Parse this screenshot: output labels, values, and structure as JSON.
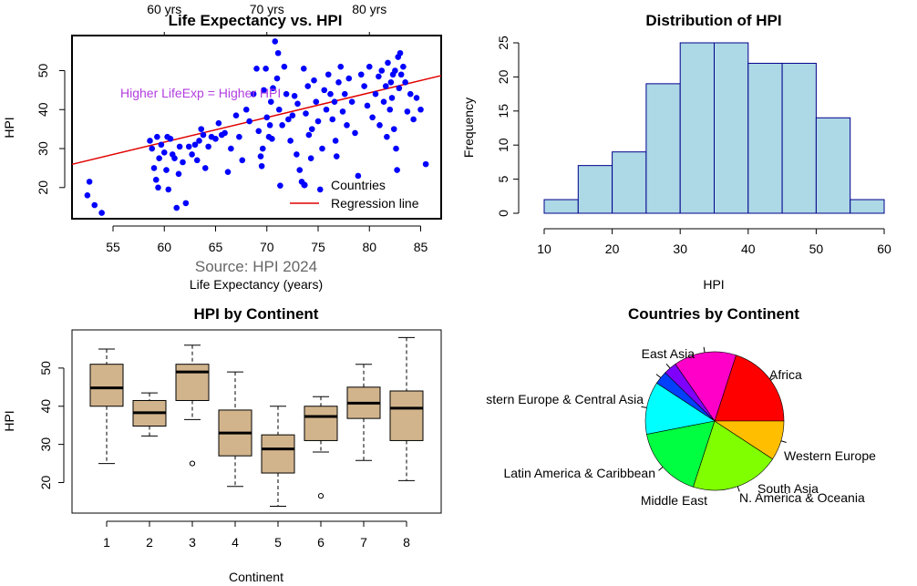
{
  "chart_data": [
    {
      "type": "scatter",
      "title": "Life Expectancy vs. HPI",
      "xlabel": "Life Expectancy (years)",
      "ylabel": "HPI",
      "xlim": [
        51,
        87
      ],
      "ylim": [
        12,
        59
      ],
      "xticks": [
        55,
        60,
        65,
        70,
        75,
        80,
        85
      ],
      "yticks": [
        20,
        30,
        40,
        50
      ],
      "top_ticks": [
        "60 yrs",
        "70 yrs",
        "80 yrs"
      ],
      "top_tick_values": [
        60,
        70,
        80
      ],
      "annotation": "Higher LifeExp = Higher HPI",
      "annotation_color": "#b23ee0",
      "source_text": "Source: HPI 2024",
      "point_color": "#0000ff",
      "regression_color": "#e00000",
      "regression": {
        "intercept": -6.3,
        "slope": 0.6325
      },
      "legend": [
        "Countries",
        "Regression line"
      ],
      "legend_position": "bottom-right",
      "points": [
        [
          52.5,
          18
        ],
        [
          52.7,
          21.5
        ],
        [
          53.2,
          15.5
        ],
        [
          53.9,
          13.5
        ],
        [
          58.6,
          32
        ],
        [
          58.8,
          30
        ],
        [
          59.0,
          25
        ],
        [
          59.2,
          22
        ],
        [
          59.4,
          20
        ],
        [
          59.3,
          33
        ],
        [
          59.5,
          27.5
        ],
        [
          59.7,
          31
        ],
        [
          60.0,
          29
        ],
        [
          60.2,
          24.5
        ],
        [
          60.3,
          33
        ],
        [
          60.4,
          19.5
        ],
        [
          60.6,
          32.5
        ],
        [
          60.8,
          28.5
        ],
        [
          61.0,
          27.5
        ],
        [
          61.4,
          23.5
        ],
        [
          61.2,
          14.8
        ],
        [
          61.5,
          30.5
        ],
        [
          61.8,
          26.5
        ],
        [
          62.1,
          16
        ],
        [
          62.4,
          30.5
        ],
        [
          62.7,
          28.5
        ],
        [
          63.0,
          31
        ],
        [
          63.2,
          27
        ],
        [
          63.4,
          32
        ],
        [
          63.6,
          35
        ],
        [
          63.8,
          33.5
        ],
        [
          64.0,
          25
        ],
        [
          64.3,
          30.5
        ],
        [
          64.6,
          33
        ],
        [
          65.0,
          32.5
        ],
        [
          65.3,
          36.5
        ],
        [
          65.6,
          33.5
        ],
        [
          65.9,
          34
        ],
        [
          66.2,
          24
        ],
        [
          66.5,
          30
        ],
        [
          67.0,
          38.5
        ],
        [
          67.3,
          33
        ],
        [
          67.6,
          27
        ],
        [
          68.0,
          40
        ],
        [
          68.3,
          37
        ],
        [
          68.7,
          44
        ],
        [
          69.0,
          50.5
        ],
        [
          69.2,
          34.5
        ],
        [
          69.4,
          28
        ],
        [
          69.5,
          25.5
        ],
        [
          69.6,
          30
        ],
        [
          69.7,
          45
        ],
        [
          69.9,
          50.5
        ],
        [
          70.0,
          38
        ],
        [
          70.2,
          33
        ],
        [
          70.3,
          36
        ],
        [
          70.4,
          42
        ],
        [
          70.5,
          32.5
        ],
        [
          70.6,
          45.5
        ],
        [
          70.8,
          57.5
        ],
        [
          71.0,
          48
        ],
        [
          71.1,
          54.5
        ],
        [
          71.2,
          40
        ],
        [
          71.3,
          20.5
        ],
        [
          71.5,
          36
        ],
        [
          71.7,
          51
        ],
        [
          71.9,
          44
        ],
        [
          72.1,
          37.5
        ],
        [
          72.3,
          32
        ],
        [
          72.5,
          38.5
        ],
        [
          72.7,
          43.5
        ],
        [
          72.9,
          28.5
        ],
        [
          73.0,
          41.5
        ],
        [
          73.2,
          24.5
        ],
        [
          73.4,
          21.5
        ],
        [
          73.6,
          50.5
        ],
        [
          73.8,
          39
        ],
        [
          74.0,
          46
        ],
        [
          74.1,
          33.5
        ],
        [
          74.3,
          27.5
        ],
        [
          74.4,
          35
        ],
        [
          74.6,
          47.5
        ],
        [
          74.8,
          42
        ],
        [
          75.0,
          37
        ],
        [
          75.2,
          19.5
        ],
        [
          75.4,
          30
        ],
        [
          75.6,
          45
        ],
        [
          75.8,
          40
        ],
        [
          76.0,
          49
        ],
        [
          76.2,
          44
        ],
        [
          76.4,
          37.5
        ],
        [
          76.6,
          42
        ],
        [
          76.7,
          32
        ],
        [
          76.8,
          28
        ],
        [
          77.0,
          47
        ],
        [
          77.2,
          51
        ],
        [
          77.4,
          39.5
        ],
        [
          77.6,
          44
        ],
        [
          77.8,
          36
        ],
        [
          78.0,
          48
        ],
        [
          78.3,
          42
        ],
        [
          78.6,
          34
        ],
        [
          78.9,
          23
        ],
        [
          79.2,
          49
        ],
        [
          79.5,
          46
        ],
        [
          79.8,
          41
        ],
        [
          80.0,
          51
        ],
        [
          80.3,
          38
        ],
        [
          80.6,
          44
        ],
        [
          80.9,
          48.5
        ],
        [
          81.0,
          36
        ],
        [
          81.2,
          50
        ],
        [
          81.4,
          42
        ],
        [
          81.6,
          46
        ],
        [
          81.7,
          33
        ],
        [
          81.8,
          52
        ],
        [
          82.0,
          40
        ],
        [
          82.1,
          47
        ],
        [
          82.2,
          43
        ],
        [
          82.3,
          49
        ],
        [
          82.4,
          35
        ],
        [
          82.5,
          50
        ],
        [
          82.6,
          30
        ],
        [
          82.7,
          24.5
        ],
        [
          82.8,
          53.5
        ],
        [
          82.9,
          45.5
        ],
        [
          83.0,
          54.5
        ],
        [
          83.1,
          49
        ],
        [
          83.3,
          51
        ],
        [
          83.5,
          47
        ],
        [
          83.7,
          39.5
        ],
        [
          84.0,
          44
        ],
        [
          84.3,
          37.5
        ],
        [
          84.6,
          43
        ],
        [
          85.0,
          40
        ],
        [
          85.5,
          26
        ]
      ]
    },
    {
      "type": "histogram",
      "title": "Distribution of HPI",
      "xlabel": "HPI",
      "ylabel": "Frequency",
      "xlim": [
        10,
        60
      ],
      "ylim": [
        0,
        25
      ],
      "xticks": [
        10,
        20,
        30,
        40,
        50,
        60
      ],
      "yticks": [
        0,
        5,
        10,
        15,
        20,
        25
      ],
      "bins": [
        10,
        15,
        20,
        25,
        30,
        35,
        40,
        45,
        50,
        55,
        60
      ],
      "counts": [
        2,
        7,
        9,
        19,
        25,
        25,
        22,
        22,
        14,
        2
      ],
      "fill_color": "#add8e6",
      "border_color": "#00008b"
    },
    {
      "type": "boxplot",
      "title": "HPI by Continent",
      "xlabel": "Continent",
      "ylabel": "HPI",
      "ylim": [
        12,
        60
      ],
      "yticks": [
        20,
        30,
        40,
        50
      ],
      "categories": [
        "1",
        "2",
        "3",
        "4",
        "5",
        "6",
        "7",
        "8"
      ],
      "fill_color": "#d2b48c",
      "boxes": [
        {
          "min": 25,
          "q1": 40,
          "median": 44.8,
          "q3": 51,
          "max": 55,
          "outliers": []
        },
        {
          "min": 32.2,
          "q1": 34.8,
          "median": 38.3,
          "q3": 41.5,
          "max": 43.5,
          "outliers": []
        },
        {
          "min": 36.5,
          "q1": 41.5,
          "median": 49,
          "q3": 51,
          "max": 56,
          "outliers": [
            25
          ]
        },
        {
          "min": 19,
          "q1": 27,
          "median": 33,
          "q3": 39,
          "max": 49,
          "outliers": []
        },
        {
          "min": 13.8,
          "q1": 22.5,
          "median": 28.8,
          "q3": 32.5,
          "max": 40,
          "outliers": []
        },
        {
          "min": 28,
          "q1": 31,
          "median": 37.3,
          "q3": 40,
          "max": 42.5,
          "outliers": [
            16.5
          ]
        },
        {
          "min": 25.8,
          "q1": 36.8,
          "median": 40.8,
          "q3": 45,
          "max": 51,
          "outliers": []
        },
        {
          "min": 20.5,
          "q1": 31,
          "median": 39.5,
          "q3": 44,
          "max": 58,
          "outliers": []
        }
      ]
    },
    {
      "type": "pie",
      "title": "Countries by Continent",
      "slices": [
        {
          "label": "Africa",
          "value": 26,
          "color": "#ff0000"
        },
        {
          "label": "Western Europe",
          "value": 19,
          "color": "#ff00c8"
        },
        {
          "label": "South Asia",
          "value": 4,
          "color": "#8000ff"
        },
        {
          "label": "N. America & Oceania",
          "value": 4,
          "color": "#0040ff"
        },
        {
          "label": "Middle East",
          "value": 16,
          "color": "#00ffff"
        },
        {
          "label": "Latin America & Caribbean",
          "value": 22,
          "color": "#00ff40"
        },
        {
          "label": "stern Europe & Central Asia",
          "value": 27,
          "color": "#80ff00"
        },
        {
          "label": "East Asia",
          "value": 12,
          "color": "#ffbf00"
        }
      ]
    }
  ]
}
